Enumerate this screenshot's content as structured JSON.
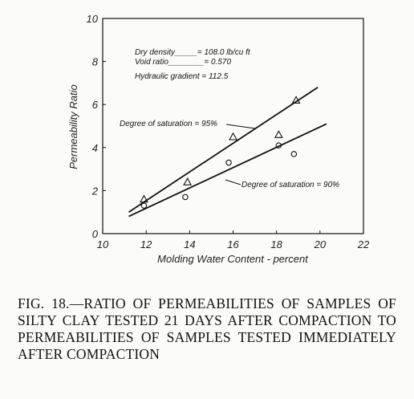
{
  "chart_data": {
    "type": "scatter",
    "xlabel": "Molding Water Content - percent",
    "ylabel": "Permeability Ratio",
    "xlim": [
      10,
      22
    ],
    "ylim": [
      0,
      10
    ],
    "xticks": [
      10,
      12,
      14,
      16,
      18,
      20,
      22
    ],
    "yticks": [
      0,
      2,
      4,
      6,
      8,
      10
    ],
    "xtick_labels": [
      "10",
      "12",
      "14",
      "16",
      "18",
      "20",
      "22"
    ],
    "ytick_labels": [
      "0",
      "2",
      "4",
      "6",
      "8",
      "10"
    ],
    "grid": false,
    "annotations": [
      "Dry density_____= 108.0 lb/cu ft",
      "Void ratio________= 0.570",
      "Hydraulic gradient = 112.5"
    ],
    "series": [
      {
        "name": "Degree of saturation = 95%",
        "marker": "triangle",
        "x": [
          11.9,
          13.9,
          16.0,
          18.1,
          18.9
        ],
        "y": [
          1.6,
          2.4,
          4.5,
          4.6,
          6.2
        ],
        "fit_line": {
          "x": [
            11.2,
            19.9
          ],
          "y": [
            1.0,
            6.8
          ]
        }
      },
      {
        "name": "Degree of saturation = 90%",
        "marker": "circle",
        "x": [
          11.9,
          13.8,
          15.8,
          18.1,
          18.8
        ],
        "y": [
          1.3,
          1.7,
          3.3,
          4.1,
          3.7
        ],
        "fit_line": {
          "x": [
            11.2,
            20.3
          ],
          "y": [
            0.8,
            5.1
          ]
        }
      }
    ]
  },
  "caption": "FIG. 18.—RATIO OF PERMEABILITIES OF SAMPLES OF SILTY CLAY TESTED 21 DAYS AFTER COMPACTION TO PERMEABILITIES OF SAMPLES TESTED IMMEDIATELY AFTER COMPACTION"
}
